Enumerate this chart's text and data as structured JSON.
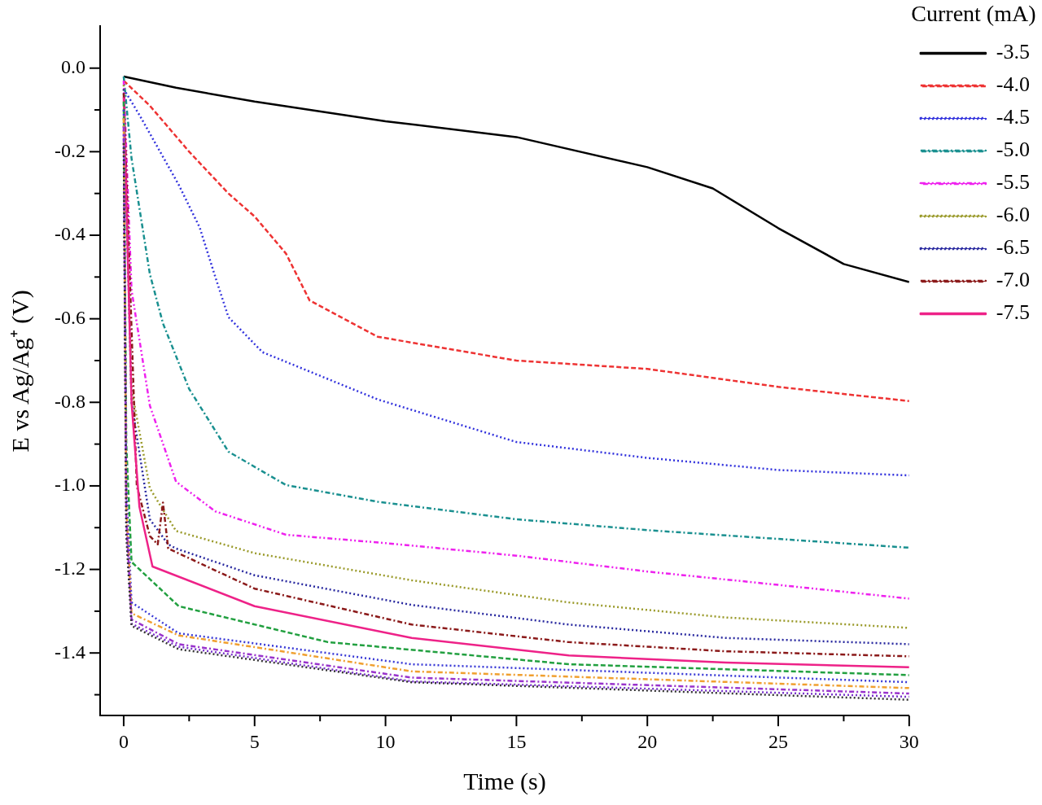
{
  "chart_data": {
    "type": "line",
    "xlabel": "Time (s)",
    "ylabel": "E vs Ag/Ag⁺ (V)",
    "legend_title": "Current (mA)",
    "legend": "right",
    "grid": false,
    "marker": "none",
    "xlim": [
      -0.9,
      30
    ],
    "ylim": [
      -1.55,
      0.1
    ],
    "xticks": [
      0,
      {
        "value": 2.5,
        "label": null
      },
      5,
      {
        "value": 7.5,
        "label": null
      },
      10,
      {
        "value": 12.5,
        "label": null
      },
      15,
      {
        "value": 17.5,
        "label": null
      },
      20,
      {
        "value": 22.5,
        "label": null
      },
      25,
      {
        "value": 27.5,
        "label": null
      },
      30
    ],
    "yticks": [
      {
        "value": 0,
        "label": "0.0"
      },
      {
        "value": -0.1,
        "label": null
      },
      -0.2,
      {
        "value": -0.3,
        "label": null
      },
      -0.4,
      {
        "value": -0.5,
        "label": null
      },
      -0.6,
      {
        "value": -0.7,
        "label": null
      },
      -0.8,
      {
        "value": -0.9,
        "label": null
      },
      {
        "value": -1,
        "label": "-1.0"
      },
      {
        "value": -1.1,
        "label": null
      },
      -1.2,
      {
        "value": -1.3,
        "label": null
      },
      -1.4,
      {
        "value": -1.5,
        "label": null
      }
    ],
    "series": [
      {
        "name": "-3.5",
        "color": "#000000",
        "line_style": "solid",
        "x": [
          0,
          2,
          5,
          10,
          15,
          20,
          22.5,
          25,
          27.5,
          30
        ],
        "values": [
          -0.02,
          -0.047,
          -0.08,
          -0.127,
          -0.165,
          -0.237,
          -0.288,
          -0.383,
          -0.469,
          -0.512
        ]
      },
      {
        "name": "-4.0",
        "color": "#ee3333",
        "line_style": "dashed",
        "x": [
          0,
          1,
          2.5,
          4,
          5,
          6.2,
          7.1,
          9.7,
          15,
          20,
          25,
          30
        ],
        "values": [
          -0.03,
          -0.09,
          -0.2,
          -0.3,
          -0.355,
          -0.444,
          -0.556,
          -0.643,
          -0.7,
          -0.72,
          -0.763,
          -0.797
        ]
      },
      {
        "name": "-4.5",
        "color": "#3333dd",
        "line_style": "dotted",
        "x": [
          0,
          0.6,
          2.1,
          2.9,
          3.5,
          4,
          5.3,
          9.7,
          15,
          20,
          25,
          30
        ],
        "values": [
          -0.05,
          -0.112,
          -0.279,
          -0.381,
          -0.5,
          -0.596,
          -0.68,
          -0.793,
          -0.895,
          -0.933,
          -0.962,
          -0.975
        ]
      },
      {
        "name": "-5.0",
        "color": "#1a9090",
        "line_style": "dashdot",
        "x": [
          0,
          0.3,
          1,
          1.5,
          2.5,
          4,
          6.2,
          9.7,
          15,
          20,
          25,
          30
        ],
        "values": [
          -0.02,
          -0.216,
          -0.493,
          -0.611,
          -0.768,
          -0.918,
          -0.998,
          -1.038,
          -1.08,
          -1.106,
          -1.127,
          -1.148
        ]
      },
      {
        "name": "-5.5",
        "color": "#ee22ee",
        "line_style": "dashdotdot",
        "x": [
          0,
          0.3,
          1,
          2,
          3.5,
          6.2,
          10,
          15,
          20,
          25,
          30
        ],
        "values": [
          -0.03,
          -0.531,
          -0.808,
          -0.99,
          -1.061,
          -1.117,
          -1.137,
          -1.167,
          -1.205,
          -1.237,
          -1.27
        ]
      },
      {
        "name": "-6.0",
        "color": "#9a9a2a",
        "line_style": "dotted",
        "x": [
          0,
          0.3,
          1,
          2,
          5,
          11,
          17,
          23,
          30
        ],
        "values": [
          -0.04,
          -0.768,
          -1.006,
          -1.108,
          -1.161,
          -1.226,
          -1.279,
          -1.315,
          -1.34
        ]
      },
      {
        "name": "-6.5",
        "color": "#2a2aa0",
        "line_style": "dotted",
        "x": [
          0,
          0.3,
          1,
          1.7,
          2,
          5,
          11,
          17,
          23,
          30
        ],
        "values": [
          -0.05,
          -0.8,
          -1.08,
          -1.14,
          -1.15,
          -1.214,
          -1.285,
          -1.332,
          -1.364,
          -1.379
        ]
      },
      {
        "name": "-7.0",
        "color": "#8b1a1a",
        "line_style": "dashdot",
        "x": [
          0,
          0.5,
          1,
          1.3,
          1.5,
          1.7,
          5,
          11,
          17,
          23,
          30
        ],
        "values": [
          -0.06,
          -1,
          -1.12,
          -1.14,
          -1.04,
          -1.15,
          -1.246,
          -1.332,
          -1.374,
          -1.396,
          -1.408
        ]
      },
      {
        "name": "-7.5",
        "color": "#ee2288",
        "line_style": "solid",
        "x": [
          0,
          0.3,
          0.6,
          1.1,
          5,
          11,
          17,
          23,
          30
        ],
        "values": [
          -0.07,
          -0.8,
          -1.05,
          -1.193,
          -1.288,
          -1.364,
          -1.406,
          -1.423,
          -1.434
        ]
      },
      {
        "color": "#22a040",
        "line_style": "dashed",
        "x": [
          0,
          0.1,
          0.3,
          2.1,
          7.8,
          17,
          30
        ],
        "values": [
          -0.08,
          -0.9,
          -1.182,
          -1.288,
          -1.374,
          -1.427,
          -1.453
        ]
      },
      {
        "color": "#3a3ad6",
        "line_style": "dotted",
        "x": [
          0,
          0.1,
          0.3,
          2.1,
          11,
          30
        ],
        "values": [
          -0.1,
          -1,
          -1.279,
          -1.353,
          -1.427,
          -1.47
        ]
      },
      {
        "color": "#f0a030",
        "line_style": "dashdot",
        "x": [
          0,
          0.1,
          0.3,
          2.1,
          11,
          30
        ],
        "values": [
          -0.12,
          -1.05,
          -1.305,
          -1.358,
          -1.444,
          -1.484
        ]
      },
      {
        "color": "#9933cc",
        "line_style": "dashdot",
        "x": [
          0,
          0.1,
          0.3,
          2.1,
          11,
          30
        ],
        "values": [
          -0.14,
          -1.08,
          -1.32,
          -1.379,
          -1.459,
          -1.497
        ]
      },
      {
        "color": "#7a33cc",
        "line_style": "dotted",
        "x": [
          0,
          0.1,
          0.3,
          2.1,
          11,
          30
        ],
        "values": [
          -0.16,
          -1.1,
          -1.33,
          -1.385,
          -1.468,
          -1.505
        ]
      },
      {
        "color": "#333333",
        "line_style": "dotted",
        "x": [
          0,
          0.1,
          0.3,
          2.1,
          11,
          30
        ],
        "values": [
          -0.18,
          -1.12,
          -1.335,
          -1.391,
          -1.47,
          -1.512
        ]
      }
    ]
  }
}
